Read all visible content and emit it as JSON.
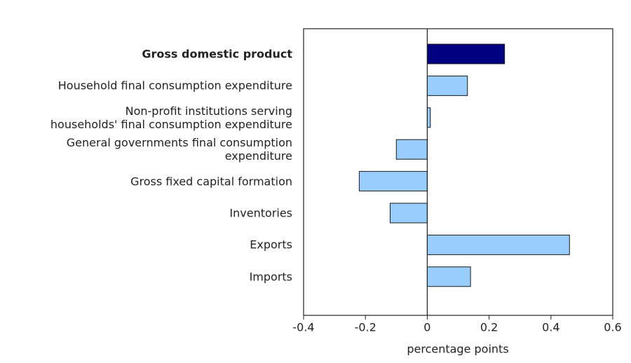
{
  "chart_data": {
    "type": "hbar",
    "categories": [
      "Gross domestic product",
      "Household final consumption expenditure",
      "Non-profit institutions serving\nhouseholds' final consumption expenditure",
      "General governments final consumption\nexpenditure",
      "Gross fixed capital formation",
      "Inventories",
      "Exports",
      "Imports"
    ],
    "values": [
      0.25,
      0.13,
      0.01,
      -0.1,
      -0.22,
      -0.12,
      0.46,
      0.14
    ],
    "color": "#99ccff",
    "highlight": 0,
    "highlight_color": "#000080",
    "xlim": [
      -0.4,
      0.6
    ],
    "xticks": [
      -0.4,
      -0.2,
      0.0,
      0.2,
      0.4,
      0.6
    ],
    "xlabel": "percentage points"
  }
}
